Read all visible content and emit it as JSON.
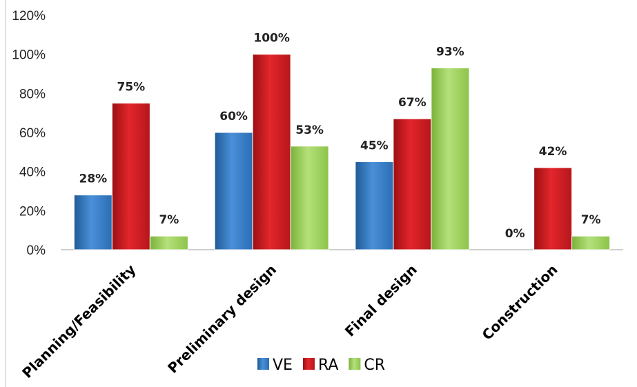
{
  "chart_data": {
    "type": "bar",
    "categories": [
      "Planning/Feasibility",
      "Preliminary design",
      "Final design",
      "Construction"
    ],
    "series": [
      {
        "name": "VE",
        "color": "#2e75b6",
        "values": [
          28,
          60,
          45,
          0
        ],
        "labels": [
          "28%",
          "60%",
          "45%",
          "0%"
        ]
      },
      {
        "name": "RA",
        "color": "#c00000",
        "values": [
          75,
          100,
          67,
          42
        ],
        "labels": [
          "75%",
          "100%",
          "67%",
          "42%"
        ]
      },
      {
        "name": "CR",
        "color": "#92d050",
        "values": [
          7,
          53,
          93,
          7
        ],
        "labels": [
          "7%",
          "53%",
          "93%",
          "7%"
        ]
      }
    ],
    "ylim": [
      0,
      120
    ],
    "yticks": [
      "0%",
      "20%",
      "40%",
      "60%",
      "80%",
      "100%",
      "120%"
    ],
    "grid": false,
    "legend": "bottom"
  }
}
